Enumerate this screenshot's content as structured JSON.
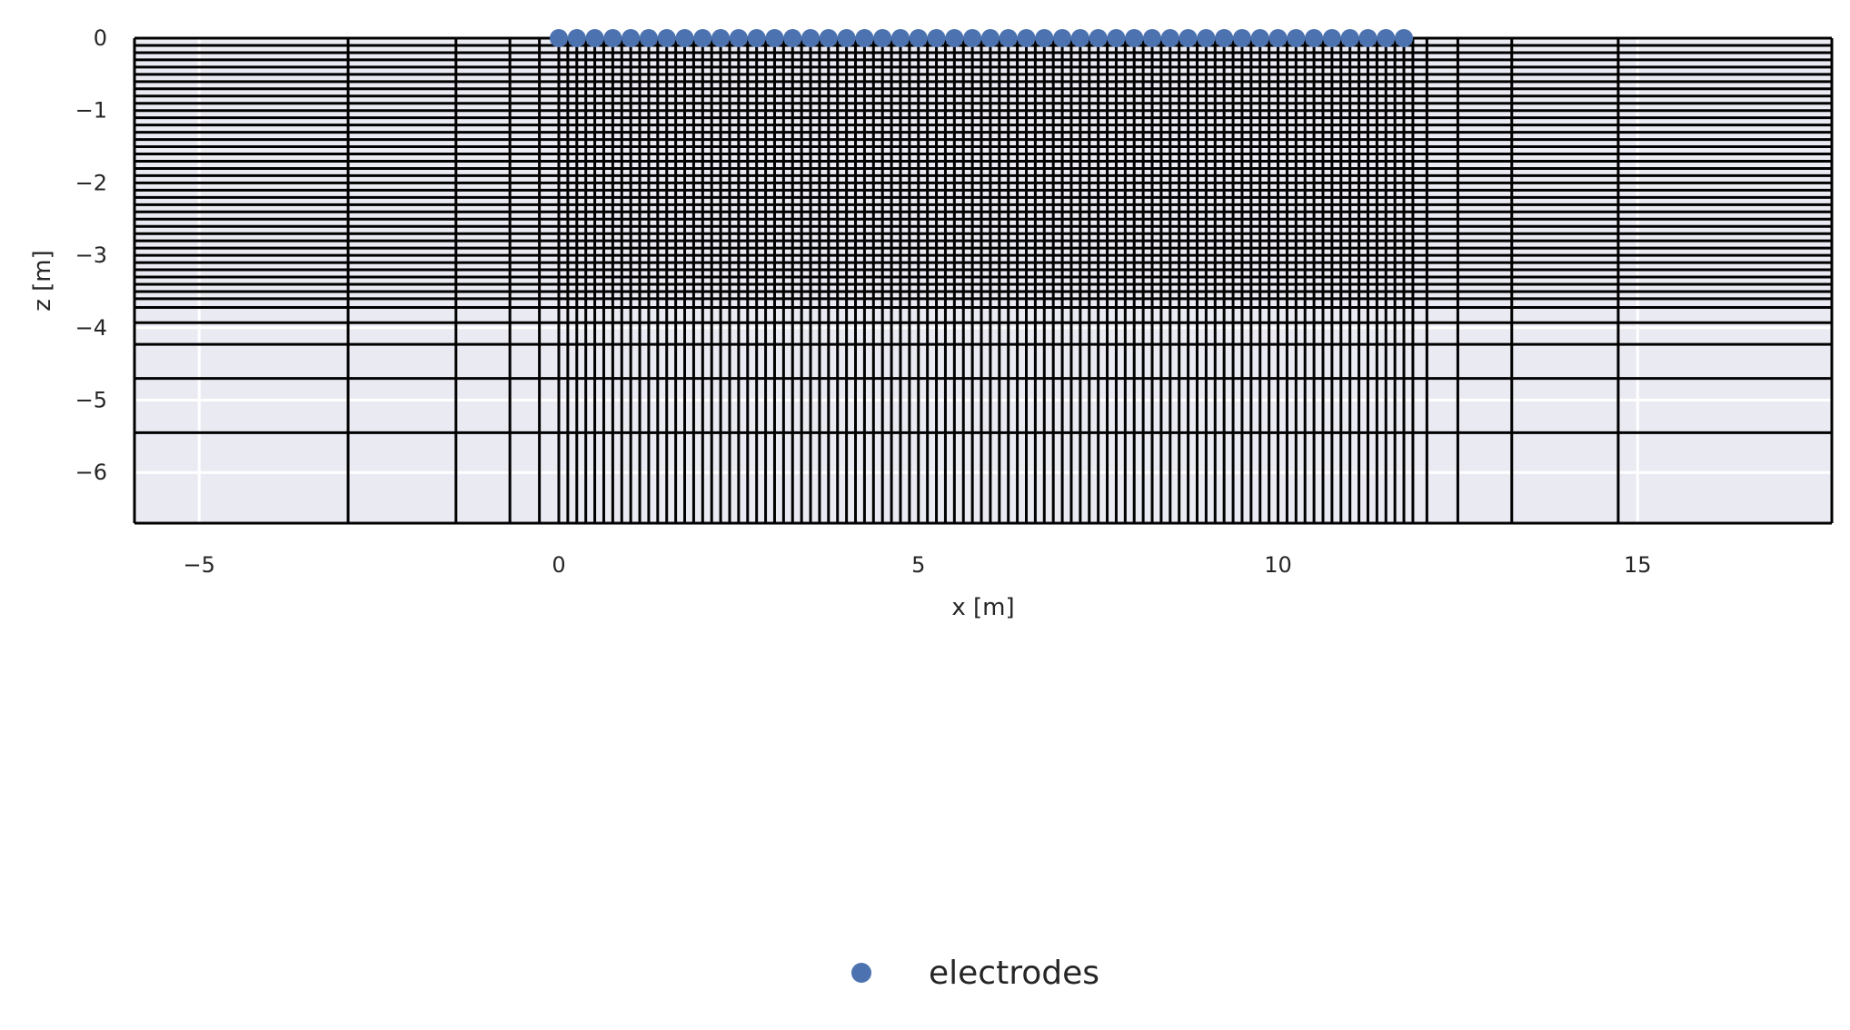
{
  "chart_data": {
    "type": "scatter",
    "title": "",
    "xlabel": "x [m]",
    "ylabel": "z [m]",
    "xlim": [
      -5.9,
      17.7
    ],
    "ylim": [
      -6.7,
      0.0
    ],
    "x_ticks": [
      -5,
      0,
      5,
      10,
      15
    ],
    "x_tick_labels": [
      "−5",
      "0",
      "5",
      "10",
      "15"
    ],
    "y_ticks": [
      0,
      -1,
      -2,
      -3,
      -4,
      -5,
      -6
    ],
    "y_tick_labels": [
      "0",
      "−1",
      "−2",
      "−3",
      "−4",
      "−5",
      "−6"
    ],
    "grid": true,
    "background": "#eaeaf2",
    "mesh_color": "#000000",
    "mesh": {
      "x_lines": [
        -5.9,
        -2.93,
        -1.43,
        -0.68,
        -0.27,
        0.0,
        0.125,
        0.25,
        0.375,
        0.5,
        0.625,
        0.75,
        0.875,
        1.0,
        1.125,
        1.25,
        1.375,
        1.5,
        1.625,
        1.75,
        1.875,
        2.0,
        2.125,
        2.25,
        2.375,
        2.5,
        2.625,
        2.75,
        2.875,
        3.0,
        3.125,
        3.25,
        3.375,
        3.5,
        3.625,
        3.75,
        3.875,
        4.0,
        4.125,
        4.25,
        4.375,
        4.5,
        4.625,
        4.75,
        4.875,
        5.0,
        5.125,
        5.25,
        5.375,
        5.5,
        5.625,
        5.75,
        5.875,
        6.0,
        6.125,
        6.25,
        6.375,
        6.5,
        6.625,
        6.75,
        6.875,
        7.0,
        7.125,
        7.25,
        7.375,
        7.5,
        7.625,
        7.75,
        7.875,
        8.0,
        8.125,
        8.25,
        8.375,
        8.5,
        8.625,
        8.75,
        8.875,
        9.0,
        9.125,
        9.25,
        9.375,
        9.5,
        9.625,
        9.75,
        9.875,
        10.0,
        10.125,
        10.25,
        10.375,
        10.5,
        10.625,
        10.75,
        10.875,
        11.0,
        11.125,
        11.25,
        11.375,
        11.5,
        11.625,
        11.75,
        11.875,
        12.07,
        12.5,
        13.25,
        14.73,
        17.7
      ],
      "z_lines": [
        0.0,
        -0.1,
        -0.2,
        -0.3,
        -0.4,
        -0.5,
        -0.6,
        -0.7,
        -0.8,
        -0.9,
        -1.0,
        -1.1,
        -1.2,
        -1.3,
        -1.4,
        -1.5,
        -1.6,
        -1.7,
        -1.8,
        -1.9,
        -2.0,
        -2.1,
        -2.2,
        -2.3,
        -2.4,
        -2.5,
        -2.6,
        -2.7,
        -2.8,
        -2.9,
        -3.0,
        -3.1,
        -3.2,
        -3.3,
        -3.4,
        -3.5,
        -3.6,
        -3.72,
        -3.93,
        -4.23,
        -4.7,
        -5.45,
        -6.7
      ]
    },
    "series": [
      {
        "name": "electrodes",
        "color": "#4c72b0",
        "marker": "circle",
        "x": [
          0.0,
          0.25,
          0.5,
          0.75,
          1.0,
          1.25,
          1.5,
          1.75,
          2.0,
          2.25,
          2.5,
          2.75,
          3.0,
          3.25,
          3.5,
          3.75,
          4.0,
          4.25,
          4.5,
          4.75,
          5.0,
          5.25,
          5.5,
          5.75,
          6.0,
          6.25,
          6.5,
          6.75,
          7.0,
          7.25,
          7.5,
          7.75,
          8.0,
          8.25,
          8.5,
          8.75,
          9.0,
          9.25,
          9.5,
          9.75,
          10.0,
          10.25,
          10.5,
          10.75,
          11.0,
          11.25,
          11.5,
          11.75
        ],
        "y": [
          0,
          0,
          0,
          0,
          0,
          0,
          0,
          0,
          0,
          0,
          0,
          0,
          0,
          0,
          0,
          0,
          0,
          0,
          0,
          0,
          0,
          0,
          0,
          0,
          0,
          0,
          0,
          0,
          0,
          0,
          0,
          0,
          0,
          0,
          0,
          0,
          0,
          0,
          0,
          0,
          0,
          0,
          0,
          0,
          0,
          0,
          0,
          0
        ]
      }
    ],
    "legend": {
      "placement": "bottom-center",
      "entries": [
        "electrodes"
      ]
    }
  }
}
